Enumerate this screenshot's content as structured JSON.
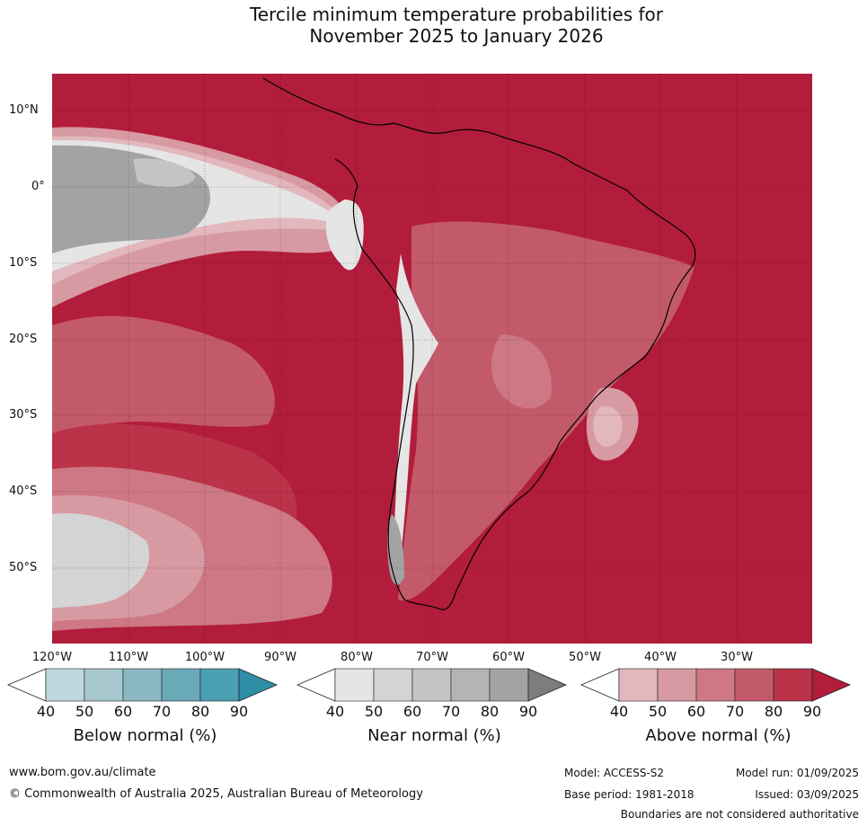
{
  "title_line1": "Tercile minimum temperature probabilities for",
  "title_line2": "November 2025 to January 2026",
  "lat_labels": [
    "10°N",
    "0°",
    "10°S",
    "20°S",
    "30°S",
    "40°S",
    "50°S"
  ],
  "lon_labels": [
    "120°W",
    "110°W",
    "100°W",
    "90°W",
    "80°W",
    "70°W",
    "60°W",
    "50°W",
    "40°W",
    "30°W"
  ],
  "legends": [
    {
      "title": "Below normal (%)",
      "ticks": [
        "40",
        "50",
        "60",
        "70",
        "80",
        "90"
      ],
      "colors": [
        "#ffffff",
        "#bfd6dc",
        "#a7c8cf",
        "#8bb7c3",
        "#6aa9b7",
        "#4b9fb2",
        "#2f8ea5"
      ]
    },
    {
      "title": "Near normal (%)",
      "ticks": [
        "40",
        "50",
        "60",
        "70",
        "80",
        "90"
      ],
      "colors": [
        "#ffffff",
        "#e5e5e5",
        "#d4d4d4",
        "#c4c4c4",
        "#b4b4b4",
        "#a3a3a3",
        "#7d7d7d"
      ]
    },
    {
      "title": "Above normal (%)",
      "ticks": [
        "40",
        "50",
        "60",
        "70",
        "80",
        "90"
      ],
      "colors": [
        "#ffffff",
        "#e2b7bd",
        "#d89aa2",
        "#cd7884",
        "#c35a69",
        "#bb3349",
        "#b21d3b"
      ]
    }
  ],
  "footer": {
    "website": "www.bom.gov.au/climate",
    "copyright": "© Commonwealth of Australia 2025, Australian Bureau of Meteorology",
    "model": "Model: ACCESS-S2",
    "base_period": "Base period: 1981-2018",
    "model_run": "Model run: 01/09/2025",
    "issued": "Issued: 03/09/2025",
    "boundaries": "Boundaries are not considered authoritative"
  },
  "map_colors": {
    "above90": "#b21d3b",
    "above80": "#bb3349",
    "above70": "#c35a69",
    "above60": "#cd7884",
    "above50": "#d89aa2",
    "above40": "#e2b7bd",
    "near80": "#a3a3a3",
    "near60": "#c4c4c4",
    "near50": "#d4d4d4",
    "near40": "#e5e5e5"
  }
}
